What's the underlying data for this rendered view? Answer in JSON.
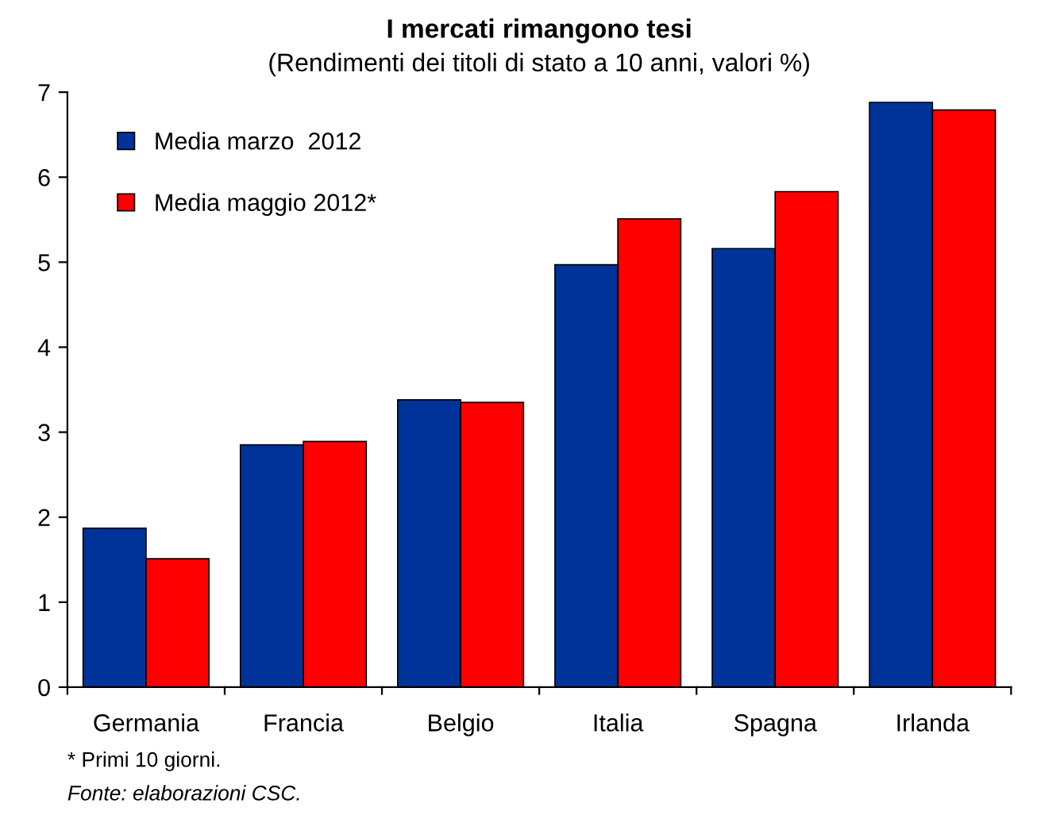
{
  "chart_data": {
    "type": "bar",
    "title": "I mercati rimangono tesi",
    "subtitle": "(Rendimenti dei titoli di stato a 10 anni, valori %)",
    "categories": [
      "Germania",
      "Francia",
      "Belgio",
      "Italia",
      "Spagna",
      "Irlanda"
    ],
    "series": [
      {
        "name": "Media marzo  2012",
        "color": "#003399",
        "values": [
          1.87,
          2.85,
          3.38,
          4.97,
          5.16,
          6.88
        ]
      },
      {
        "name": "Media maggio 2012*",
        "color": "#ff0000",
        "values": [
          1.51,
          2.89,
          3.35,
          5.51,
          5.83,
          6.79
        ]
      }
    ],
    "ylim": [
      0,
      7
    ],
    "yticks": [
      0,
      1,
      2,
      3,
      4,
      5,
      6,
      7
    ],
    "grid": false,
    "legend": "top left",
    "annotations": [
      "* Primi 10 giorni.",
      "Fonte: elaborazioni CSC."
    ]
  }
}
